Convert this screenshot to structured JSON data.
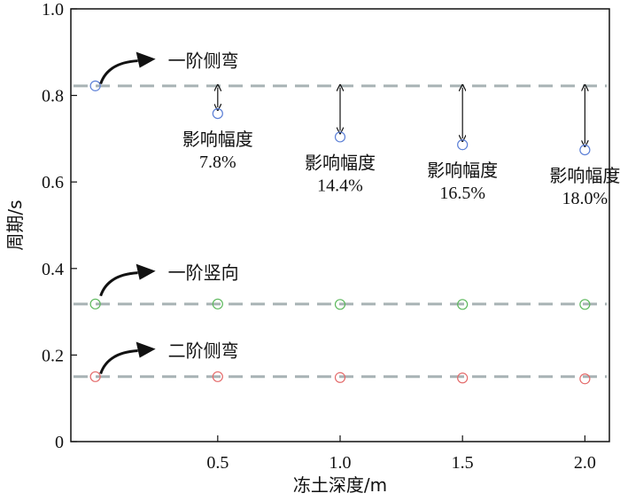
{
  "chart_data": {
    "type": "scatter",
    "xlabel": "冻土深度/m",
    "ylabel": "周期/s",
    "xlim": [
      -0.1,
      2.1
    ],
    "ylim": [
      0,
      1.0
    ],
    "x": [
      0,
      0.5,
      1.0,
      1.5,
      2.0
    ],
    "xticks": [
      0.5,
      1.0,
      1.5,
      2.0
    ],
    "xtick_labels": [
      "0.5",
      "1.0",
      "1.5",
      "2.0"
    ],
    "yticks": [
      0,
      0.2,
      0.4,
      0.6,
      0.8,
      1.0
    ],
    "ytick_labels": [
      "0",
      "0.2",
      "0.4",
      "0.6",
      "0.8",
      "1.0"
    ],
    "series": [
      {
        "name": "一阶侧弯",
        "color": "#5b7fd6",
        "values": [
          0.822,
          0.758,
          0.704,
          0.686,
          0.674
        ],
        "reference": 0.822,
        "label_anchor_x": 0.0,
        "label_anchor_y": 0.88
      },
      {
        "name": "一阶竖向",
        "color": "#5cb85c",
        "values": [
          0.318,
          0.318,
          0.317,
          0.317,
          0.317
        ],
        "reference": 0.318,
        "label_anchor_x": 0.0,
        "label_anchor_y": 0.39
      },
      {
        "name": "二阶侧弯",
        "color": "#e46a6a",
        "values": [
          0.15,
          0.15,
          0.148,
          0.147,
          0.145
        ],
        "reference": 0.15,
        "label_anchor_x": 0.0,
        "label_anchor_y": 0.21
      }
    ],
    "reference_line_color": "#a8b3b5",
    "annotations": [
      {
        "x": 0.5,
        "label": "影响幅度",
        "value": "7.8%"
      },
      {
        "x": 1.0,
        "label": "影响幅度",
        "value": "14.4%"
      },
      {
        "x": 1.5,
        "label": "影响幅度",
        "value": "16.5%"
      },
      {
        "x": 2.0,
        "label": "影响幅度",
        "value": "18.0%"
      }
    ]
  }
}
